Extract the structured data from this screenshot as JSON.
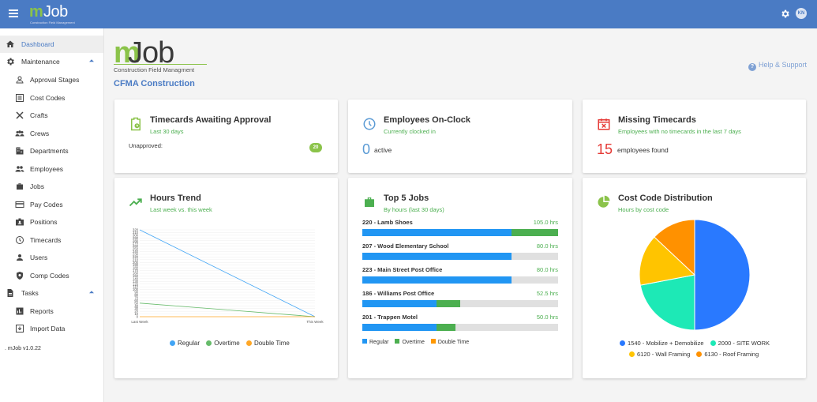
{
  "topbar": {
    "logo_m": "m",
    "logo_job": "Job",
    "logo_sub": "Construction Field Management",
    "avatar_initials": "KN"
  },
  "sidebar": {
    "items": [
      {
        "label": "Dashboard",
        "icon": "home-icon",
        "active": true
      },
      {
        "label": "Maintenance",
        "icon": "gear-icon",
        "section": true
      },
      {
        "label": "Approval Stages",
        "icon": "person-icon"
      },
      {
        "label": "Cost Codes",
        "icon": "list-icon"
      },
      {
        "label": "Crafts",
        "icon": "tools-icon"
      },
      {
        "label": "Crews",
        "icon": "group-icon"
      },
      {
        "label": "Departments",
        "icon": "building-icon"
      },
      {
        "label": "Employees",
        "icon": "people-icon"
      },
      {
        "label": "Jobs",
        "icon": "briefcase-icon"
      },
      {
        "label": "Pay Codes",
        "icon": "card-icon"
      },
      {
        "label": "Positions",
        "icon": "badge-icon"
      },
      {
        "label": "Timecards",
        "icon": "clock-icon"
      },
      {
        "label": "Users",
        "icon": "user-icon"
      },
      {
        "label": "Comp Codes",
        "icon": "shield-icon"
      },
      {
        "label": "Tasks",
        "icon": "document-icon",
        "section": true
      },
      {
        "label": "Reports",
        "icon": "chart-icon"
      },
      {
        "label": "Import Data",
        "icon": "import-icon"
      }
    ],
    "version": ". mJob v1.0.22"
  },
  "header": {
    "brand_m": "m",
    "brand_job": "Job",
    "brand_sub": "Construction Field Managment",
    "company": "CFMA Construction",
    "help": "Help & Support"
  },
  "cards": {
    "timecards": {
      "title": "Timecards Awaiting Approval",
      "subtitle": "Last 30 days",
      "unapproved_label": "Unapproved:",
      "unapproved_count": "20"
    },
    "onclock": {
      "title": "Employees On-Clock",
      "subtitle": "Currently clocked in",
      "count": "0",
      "label": "active"
    },
    "missing": {
      "title": "Missing Timecards",
      "subtitle": "Employees with no timecards in the last 7 days",
      "count": "15",
      "label": "employees found"
    },
    "trend": {
      "title": "Hours Trend",
      "subtitle": "Last week vs. this week"
    },
    "jobs": {
      "title": "Top 5 Jobs",
      "subtitle": "By hours (last 30 days)",
      "items": [
        {
          "name": "220 - Lamb Shoes",
          "hours": "105.0 hrs",
          "regular": 80,
          "overtime": 25,
          "double": 0
        },
        {
          "name": "207 - Wood Elementary School",
          "hours": "80.0 hrs",
          "regular": 80,
          "overtime": 0,
          "double": 0
        },
        {
          "name": "223 - Main Street Post Office",
          "hours": "80.0 hrs",
          "regular": 80,
          "overtime": 0,
          "double": 0
        },
        {
          "name": "186 - Williams Post Office",
          "hours": "52.5 hrs",
          "regular": 40,
          "overtime": 12.5,
          "double": 0
        },
        {
          "name": "201 - Trappen Motel",
          "hours": "50.0 hrs",
          "regular": 40,
          "overtime": 10,
          "double": 0
        }
      ],
      "legend": [
        "Regular",
        "Overtime",
        "Double Time"
      ]
    },
    "costcode": {
      "title": "Cost Code Distribution",
      "subtitle": "Hours by cost code"
    }
  },
  "colors": {
    "accent": "#4a7bc4",
    "green": "#4caf50",
    "regular": "#2196f3",
    "overtime": "#4caf50",
    "double": "#ff9800"
  },
  "chart_data": [
    {
      "type": "line",
      "x": [
        "Last Week",
        "This Week"
      ],
      "series": [
        {
          "name": "Regular",
          "values": [
            320,
            0
          ],
          "color": "#42a5f5"
        },
        {
          "name": "Overtime",
          "values": [
            50,
            0
          ],
          "color": "#66bb6a"
        },
        {
          "name": "Double Time",
          "values": [
            0,
            0
          ],
          "color": "#ffa726"
        }
      ],
      "yticks": [
        0,
        10,
        20,
        30,
        40,
        50,
        60,
        70,
        80,
        90,
        100,
        110,
        120,
        130,
        140,
        150,
        160,
        170,
        180,
        190,
        200,
        210,
        220,
        230,
        240,
        250,
        260,
        270,
        280,
        290,
        300,
        310,
        320
      ],
      "ylim": [
        0,
        320
      ]
    },
    {
      "type": "bar",
      "categories": [
        "220 - Lamb Shoes",
        "207 - Wood Elementary School",
        "223 - Main Street Post Office",
        "186 - Williams Post Office",
        "201 - Trappen Motel"
      ],
      "series": [
        {
          "name": "Regular",
          "values": [
            80,
            80,
            80,
            40,
            40
          ]
        },
        {
          "name": "Overtime",
          "values": [
            25,
            0,
            0,
            12.5,
            10
          ]
        },
        {
          "name": "Double Time",
          "values": [
            0,
            0,
            0,
            0,
            0
          ]
        }
      ],
      "xlim": [
        0,
        105
      ]
    },
    {
      "type": "pie",
      "slices": [
        {
          "label": "1540 - Mobilize + Demobilize",
          "value": 50,
          "color": "#2979ff"
        },
        {
          "label": "2000 - SITE WORK",
          "value": 22,
          "color": "#1de9b6"
        },
        {
          "label": "6120 - Wall Framing",
          "value": 15,
          "color": "#ffc400"
        },
        {
          "label": "6130 - Roof Framing",
          "value": 13,
          "color": "#ff9100"
        }
      ]
    }
  ]
}
